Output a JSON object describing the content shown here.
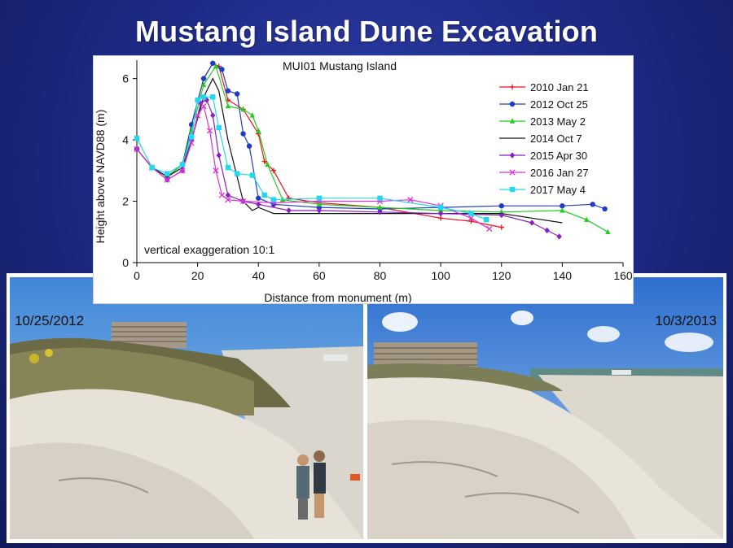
{
  "slide": {
    "title": "Mustang Island Dune Excavation"
  },
  "photos": [
    {
      "date": "10/25/2012"
    },
    {
      "date": "10/3/2013"
    }
  ],
  "colors": {
    "background": "#1e2a86",
    "title": "#ffffff"
  },
  "chart_data": {
    "type": "line",
    "title": "MUI01 Mustang Island",
    "xlabel": "Distance from monument (m)",
    "ylabel": "Height above NAVD88 (m)",
    "xlim": [
      0,
      160
    ],
    "ylim": [
      0,
      6.6
    ],
    "xticks": [
      0,
      20,
      40,
      60,
      80,
      100,
      120,
      140,
      160
    ],
    "yticks": [
      0,
      2,
      4,
      6
    ],
    "grid": false,
    "legend": "top-right",
    "annotation": "vertical exaggeration 10:1",
    "series": [
      {
        "name": "2010 Jan 21",
        "color": "#e8141e",
        "marker": "plus",
        "x": [
          0,
          5,
          10,
          15,
          18,
          22,
          25,
          27,
          30,
          35,
          40,
          42,
          45,
          50,
          60,
          80,
          100,
          110,
          120
        ],
        "y": [
          3.7,
          3.1,
          2.8,
          3.2,
          4.5,
          6.0,
          6.5,
          6.4,
          5.3,
          5.0,
          4.2,
          3.3,
          3.0,
          2.1,
          1.95,
          1.8,
          1.45,
          1.35,
          1.15
        ]
      },
      {
        "name": "2012 Oct 25",
        "color": "#1e3cc8",
        "marker": "circle",
        "x": [
          0,
          5,
          10,
          15,
          18,
          22,
          25,
          28,
          30,
          33,
          35,
          37,
          40,
          45,
          60,
          80,
          100,
          120,
          140,
          150,
          154
        ],
        "y": [
          3.7,
          3.1,
          2.8,
          3.2,
          4.5,
          6.0,
          6.5,
          6.3,
          5.6,
          5.5,
          4.2,
          3.8,
          2.1,
          1.9,
          1.8,
          1.75,
          1.8,
          1.85,
          1.85,
          1.9,
          1.75
        ]
      },
      {
        "name": "2013 May 2",
        "color": "#22cc22",
        "marker": "triangle",
        "x": [
          0,
          5,
          10,
          15,
          18,
          22,
          26,
          30,
          35,
          38,
          40,
          43,
          48,
          60,
          80,
          100,
          120,
          140,
          148,
          155
        ],
        "y": [
          3.7,
          3.1,
          2.8,
          3.2,
          4.3,
          5.8,
          6.4,
          5.1,
          5.0,
          4.8,
          4.3,
          3.2,
          2.05,
          1.9,
          1.8,
          1.7,
          1.65,
          1.7,
          1.4,
          1.0
        ]
      },
      {
        "name": "2014 Oct 7",
        "color": "#111111",
        "marker": "none",
        "x": [
          0,
          5,
          10,
          15,
          18,
          22,
          25,
          27,
          30,
          35,
          38,
          40,
          45,
          60,
          80,
          100,
          120,
          130,
          140
        ],
        "y": [
          3.7,
          3.1,
          2.8,
          3.1,
          4.0,
          5.4,
          6.0,
          5.6,
          4.0,
          2.0,
          1.7,
          1.8,
          1.6,
          1.6,
          1.6,
          1.6,
          1.6,
          1.45,
          1.3
        ]
      },
      {
        "name": "2015 Apr 30",
        "color": "#8a1ec8",
        "marker": "diamond",
        "x": [
          0,
          5,
          10,
          15,
          18,
          21,
          23,
          25,
          27,
          30,
          35,
          40,
          50,
          60,
          80,
          100,
          120,
          130,
          135,
          139
        ],
        "y": [
          3.7,
          3.1,
          2.7,
          3.0,
          4.0,
          5.2,
          5.3,
          4.8,
          3.5,
          2.2,
          2.0,
          1.9,
          1.7,
          1.7,
          1.65,
          1.6,
          1.55,
          1.3,
          1.05,
          0.85
        ]
      },
      {
        "name": "2016 Jan 27",
        "color": "#e030d8",
        "marker": "x",
        "x": [
          0,
          5,
          10,
          15,
          18,
          20,
          22,
          24,
          26,
          28,
          30,
          35,
          45,
          60,
          80,
          90,
          100,
          110,
          116
        ],
        "y": [
          3.7,
          3.1,
          2.7,
          3.0,
          3.9,
          4.8,
          5.1,
          4.3,
          3.0,
          2.2,
          2.05,
          2.0,
          1.95,
          2.0,
          2.0,
          2.05,
          1.85,
          1.45,
          1.1
        ]
      },
      {
        "name": "2017 May 4",
        "color": "#20d8f0",
        "marker": "square",
        "x": [
          0,
          5,
          10,
          15,
          18,
          20,
          22,
          25,
          27,
          30,
          33,
          38,
          42,
          45,
          60,
          80,
          100,
          110,
          115
        ],
        "y": [
          4.05,
          3.1,
          2.9,
          3.2,
          4.1,
          5.3,
          5.4,
          5.4,
          4.4,
          3.1,
          2.9,
          2.85,
          2.2,
          2.05,
          2.1,
          2.1,
          1.8,
          1.6,
          1.4
        ]
      }
    ]
  }
}
